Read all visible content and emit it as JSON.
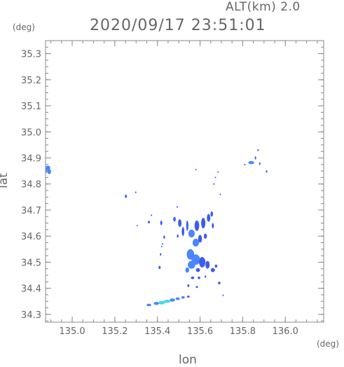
{
  "header": {
    "altitude_label": "ALT(km) 2.0",
    "timestamp": "2020/09/17 23:51:01"
  },
  "axes": {
    "x_label": "lon",
    "y_label": "lat",
    "x_unit": "(deg)",
    "y_unit": "(deg)",
    "x_range": [
      134.875,
      136.18
    ],
    "y_range": [
      34.27,
      35.35
    ],
    "x_ticks": [
      135.0,
      135.2,
      135.4,
      135.6,
      135.8,
      136.0
    ],
    "x_tick_labels": [
      "135.0",
      "135.2",
      "135.4",
      "135.6",
      "135.8",
      "136.0"
    ],
    "y_ticks": [
      34.3,
      34.4,
      34.5,
      34.6,
      34.7,
      34.8,
      34.9,
      35.0,
      35.1,
      35.2,
      35.3
    ],
    "y_tick_labels": [
      "34.3",
      "34.4",
      "34.5",
      "34.6",
      "34.7",
      "34.8",
      "34.9",
      "35.0",
      "35.1",
      "35.2",
      "35.3"
    ],
    "minor_step_x": 0.05,
    "minor_step_y": 0.025
  },
  "colors": {
    "axis": "#888888",
    "echo_weak": "#3c5cf0",
    "echo_mid": "#4a86ff",
    "echo_strong": "#3fd8e8"
  },
  "echoes": [
    {
      "lon": 134.885,
      "lat": 34.862,
      "w": 0.022,
      "h": 0.017,
      "level": "mid"
    },
    {
      "lon": 134.892,
      "lat": 34.848,
      "w": 0.018,
      "h": 0.02,
      "level": "mid"
    },
    {
      "lon": 134.879,
      "lat": 34.855,
      "w": 0.008,
      "h": 0.025,
      "level": "mid"
    },
    {
      "lon": 135.252,
      "lat": 34.753,
      "w": 0.01,
      "h": 0.012,
      "level": "weak"
    },
    {
      "lon": 135.298,
      "lat": 34.768,
      "w": 0.004,
      "h": 0.006,
      "level": "weak"
    },
    {
      "lon": 135.58,
      "lat": 34.855,
      "w": 0.003,
      "h": 0.004,
      "level": "weak"
    },
    {
      "lon": 135.665,
      "lat": 34.8,
      "w": 0.004,
      "h": 0.006,
      "level": "weak"
    },
    {
      "lon": 135.695,
      "lat": 34.76,
      "w": 0.004,
      "h": 0.006,
      "level": "weak"
    },
    {
      "lon": 135.493,
      "lat": 34.712,
      "w": 0.004,
      "h": 0.006,
      "level": "weak"
    },
    {
      "lon": 135.305,
      "lat": 34.64,
      "w": 0.003,
      "h": 0.005,
      "level": "weak"
    },
    {
      "lon": 135.84,
      "lat": 34.882,
      "w": 0.028,
      "h": 0.012,
      "level": "mid"
    },
    {
      "lon": 135.86,
      "lat": 34.9,
      "w": 0.006,
      "h": 0.012,
      "level": "weak"
    },
    {
      "lon": 135.872,
      "lat": 34.93,
      "w": 0.004,
      "h": 0.008,
      "level": "weak"
    },
    {
      "lon": 135.88,
      "lat": 34.878,
      "w": 0.004,
      "h": 0.01,
      "level": "weak"
    },
    {
      "lon": 135.81,
      "lat": 34.874,
      "w": 0.004,
      "h": 0.006,
      "level": "weak"
    },
    {
      "lon": 135.912,
      "lat": 34.848,
      "w": 0.004,
      "h": 0.01,
      "level": "weak"
    },
    {
      "lon": 135.685,
      "lat": 34.846,
      "w": 0.003,
      "h": 0.004,
      "level": "weak"
    },
    {
      "lon": 135.672,
      "lat": 34.825,
      "w": 0.003,
      "h": 0.004,
      "level": "weak"
    },
    {
      "lon": 135.36,
      "lat": 34.654,
      "w": 0.01,
      "h": 0.01,
      "level": "weak"
    },
    {
      "lon": 135.372,
      "lat": 34.68,
      "w": 0.004,
      "h": 0.006,
      "level": "weak"
    },
    {
      "lon": 135.418,
      "lat": 34.651,
      "w": 0.01,
      "h": 0.018,
      "level": "weak"
    },
    {
      "lon": 135.432,
      "lat": 34.596,
      "w": 0.008,
      "h": 0.012,
      "level": "weak"
    },
    {
      "lon": 135.424,
      "lat": 34.57,
      "w": 0.004,
      "h": 0.006,
      "level": "weak"
    },
    {
      "lon": 135.415,
      "lat": 34.53,
      "w": 0.006,
      "h": 0.01,
      "level": "weak"
    },
    {
      "lon": 135.41,
      "lat": 34.48,
      "w": 0.01,
      "h": 0.012,
      "level": "weak"
    },
    {
      "lon": 135.42,
      "lat": 34.56,
      "w": 0.003,
      "h": 0.004,
      "level": "weak"
    },
    {
      "lon": 135.48,
      "lat": 34.665,
      "w": 0.012,
      "h": 0.018,
      "level": "weak"
    },
    {
      "lon": 135.505,
      "lat": 34.65,
      "w": 0.016,
      "h": 0.03,
      "level": "weak"
    },
    {
      "lon": 135.52,
      "lat": 34.618,
      "w": 0.012,
      "h": 0.035,
      "level": "weak"
    },
    {
      "lon": 135.54,
      "lat": 34.64,
      "w": 0.01,
      "h": 0.04,
      "level": "weak"
    },
    {
      "lon": 135.495,
      "lat": 34.6,
      "w": 0.008,
      "h": 0.012,
      "level": "weak"
    },
    {
      "lon": 135.56,
      "lat": 34.61,
      "w": 0.03,
      "h": 0.03,
      "level": "mid"
    },
    {
      "lon": 135.585,
      "lat": 34.64,
      "w": 0.022,
      "h": 0.04,
      "level": "weak"
    },
    {
      "lon": 135.615,
      "lat": 34.65,
      "w": 0.02,
      "h": 0.04,
      "level": "weak"
    },
    {
      "lon": 135.64,
      "lat": 34.67,
      "w": 0.016,
      "h": 0.03,
      "level": "weak"
    },
    {
      "lon": 135.655,
      "lat": 34.685,
      "w": 0.012,
      "h": 0.02,
      "level": "weak"
    },
    {
      "lon": 135.66,
      "lat": 34.64,
      "w": 0.01,
      "h": 0.02,
      "level": "weak"
    },
    {
      "lon": 135.625,
      "lat": 34.6,
      "w": 0.015,
      "h": 0.02,
      "level": "weak"
    },
    {
      "lon": 135.6,
      "lat": 34.59,
      "w": 0.018,
      "h": 0.03,
      "level": "weak"
    },
    {
      "lon": 135.58,
      "lat": 34.575,
      "w": 0.03,
      "h": 0.03,
      "level": "mid"
    },
    {
      "lon": 135.555,
      "lat": 34.53,
      "w": 0.035,
      "h": 0.04,
      "level": "mid"
    },
    {
      "lon": 135.58,
      "lat": 34.51,
      "w": 0.04,
      "h": 0.04,
      "level": "mid"
    },
    {
      "lon": 135.56,
      "lat": 34.49,
      "w": 0.035,
      "h": 0.03,
      "level": "mid"
    },
    {
      "lon": 135.61,
      "lat": 34.5,
      "w": 0.03,
      "h": 0.04,
      "level": "weak"
    },
    {
      "lon": 135.635,
      "lat": 34.49,
      "w": 0.02,
      "h": 0.03,
      "level": "weak"
    },
    {
      "lon": 135.66,
      "lat": 34.47,
      "w": 0.02,
      "h": 0.016,
      "level": "weak"
    },
    {
      "lon": 135.675,
      "lat": 34.485,
      "w": 0.012,
      "h": 0.012,
      "level": "weak"
    },
    {
      "lon": 135.54,
      "lat": 34.47,
      "w": 0.018,
      "h": 0.02,
      "level": "mid"
    },
    {
      "lon": 135.59,
      "lat": 34.47,
      "w": 0.02,
      "h": 0.015,
      "level": "weak"
    },
    {
      "lon": 135.565,
      "lat": 34.44,
      "w": 0.016,
      "h": 0.01,
      "level": "weak"
    },
    {
      "lon": 135.595,
      "lat": 34.44,
      "w": 0.012,
      "h": 0.01,
      "level": "weak"
    },
    {
      "lon": 135.625,
      "lat": 34.445,
      "w": 0.008,
      "h": 0.008,
      "level": "weak"
    },
    {
      "lon": 135.69,
      "lat": 34.42,
      "w": 0.012,
      "h": 0.01,
      "level": "weak"
    },
    {
      "lon": 135.545,
      "lat": 34.41,
      "w": 0.01,
      "h": 0.01,
      "level": "weak"
    },
    {
      "lon": 135.585,
      "lat": 34.405,
      "w": 0.01,
      "h": 0.008,
      "level": "weak"
    },
    {
      "lon": 135.708,
      "lat": 34.373,
      "w": 0.004,
      "h": 0.006,
      "level": "weak"
    },
    {
      "lon": 135.36,
      "lat": 34.336,
      "w": 0.022,
      "h": 0.01,
      "level": "mid"
    },
    {
      "lon": 135.395,
      "lat": 34.342,
      "w": 0.025,
      "h": 0.012,
      "level": "mid"
    },
    {
      "lon": 135.42,
      "lat": 34.345,
      "w": 0.03,
      "h": 0.014,
      "level": "strong"
    },
    {
      "lon": 135.445,
      "lat": 34.35,
      "w": 0.03,
      "h": 0.012,
      "level": "strong"
    },
    {
      "lon": 135.47,
      "lat": 34.355,
      "w": 0.025,
      "h": 0.012,
      "level": "mid"
    },
    {
      "lon": 135.495,
      "lat": 34.36,
      "w": 0.02,
      "h": 0.01,
      "level": "mid"
    },
    {
      "lon": 135.52,
      "lat": 34.365,
      "w": 0.016,
      "h": 0.01,
      "level": "mid"
    },
    {
      "lon": 135.545,
      "lat": 34.368,
      "w": 0.012,
      "h": 0.008,
      "level": "weak"
    }
  ]
}
